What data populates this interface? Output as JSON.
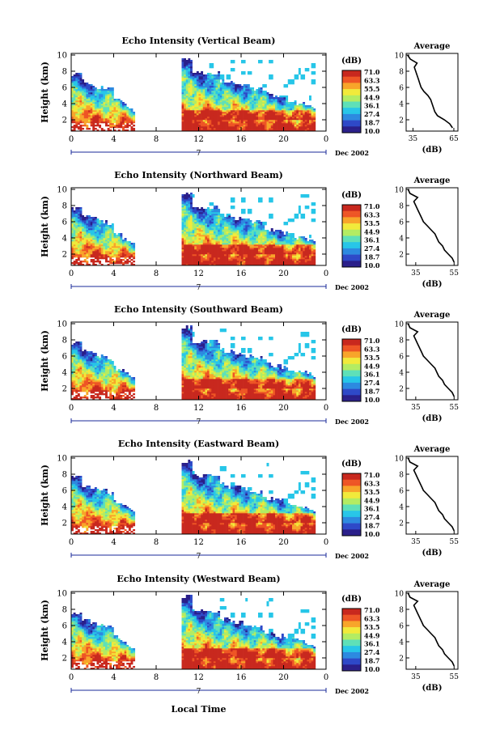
{
  "chart_data": [
    {
      "type": "heatmap",
      "title": "Echo Intensity (Vertical Beam)",
      "ylabel": "Height (km)",
      "x_ticks": [
        "0",
        "4",
        "8",
        "12",
        "16",
        "20",
        "0"
      ],
      "y_ticks": [
        "2",
        "4",
        "6",
        "8",
        "10"
      ],
      "xlim": [
        0,
        24
      ],
      "ylim": [
        0.6,
        10.2
      ],
      "date_day": "7",
      "date_label": "Dec 2002",
      "colorbar_unit": "(dB)",
      "colorbar_ticks": [
        "71.0",
        "63.3",
        "55.5",
        "44.9",
        "36.1",
        "27.4",
        "18.7",
        "10.0"
      ],
      "profile": {
        "title": "Average",
        "xlabel": "(dB)",
        "x_ticks": [
          "35",
          "65"
        ],
        "xlim": [
          30,
          68
        ],
        "y_ticks": [
          "2",
          "4",
          "6",
          "8",
          "10"
        ],
        "heights": [
          1,
          1.5,
          2,
          2.5,
          3,
          3.5,
          4,
          4.5,
          5,
          5.5,
          6,
          6.5,
          7,
          7.5,
          8,
          8.5,
          9,
          9.5,
          10
        ],
        "values": [
          64,
          62,
          58,
          53,
          51,
          50,
          49,
          48,
          46,
          43,
          41,
          40,
          39,
          38,
          37,
          36,
          38,
          33,
          31
        ]
      }
    },
    {
      "type": "heatmap",
      "title": "Echo Intensity (Northward Beam)",
      "ylabel": "Height (km)",
      "x_ticks": [
        "0",
        "4",
        "8",
        "12",
        "16",
        "20",
        "0"
      ],
      "y_ticks": [
        "2",
        "4",
        "6",
        "8",
        "10"
      ],
      "xlim": [
        0,
        24
      ],
      "ylim": [
        0.6,
        10.2
      ],
      "date_day": "7",
      "date_label": "Dec 2002",
      "colorbar_unit": "(dB)",
      "colorbar_ticks": [
        "71.0",
        "63.3",
        "53.5",
        "44.9",
        "36.1",
        "27.4",
        "18.7",
        "10.0"
      ],
      "profile": {
        "title": "Average",
        "xlabel": "(dB)",
        "x_ticks": [
          "35",
          "55"
        ],
        "xlim": [
          30,
          57
        ],
        "y_ticks": [
          "2",
          "4",
          "6",
          "8",
          "10"
        ],
        "heights": [
          1,
          1.5,
          2,
          2.5,
          3,
          3.5,
          4,
          4.5,
          5,
          5.5,
          6,
          6.5,
          7,
          7.5,
          8,
          8.5,
          9,
          9.5,
          10
        ],
        "values": [
          55,
          54,
          52,
          50,
          49,
          47,
          46,
          45,
          43,
          41,
          39,
          38,
          37,
          36,
          35,
          34,
          36,
          32,
          31
        ]
      }
    },
    {
      "type": "heatmap",
      "title": "Echo Intensity (Southward Beam)",
      "ylabel": "Height (km)",
      "x_ticks": [
        "0",
        "4",
        "8",
        "12",
        "16",
        "20",
        "0"
      ],
      "y_ticks": [
        "2",
        "4",
        "6",
        "8",
        "10"
      ],
      "xlim": [
        0,
        24
      ],
      "ylim": [
        0.6,
        10.2
      ],
      "date_day": "7",
      "date_label": "Dec 2002",
      "colorbar_unit": "(dB)",
      "colorbar_ticks": [
        "71.0",
        "63.3",
        "53.5",
        "44.9",
        "36.1",
        "27.4",
        "18.7",
        "10.0"
      ],
      "profile": {
        "title": "Average",
        "xlabel": "(dB)",
        "x_ticks": [
          "35",
          "55"
        ],
        "xlim": [
          30,
          57
        ],
        "y_ticks": [
          "2",
          "4",
          "6",
          "8",
          "10"
        ],
        "heights": [
          1,
          1.5,
          2,
          2.5,
          3,
          3.5,
          4,
          4.5,
          5,
          5.5,
          6,
          6.5,
          7,
          7.5,
          8,
          8.5,
          9,
          9.5,
          10
        ],
        "values": [
          55,
          54,
          52,
          50,
          49,
          47,
          46,
          45,
          43,
          41,
          39,
          38,
          37,
          36,
          35,
          34,
          36,
          32,
          31
        ]
      }
    },
    {
      "type": "heatmap",
      "title": "Echo Intensity (Eastward Beam)",
      "ylabel": "Height (km)",
      "x_ticks": [
        "0",
        "4",
        "8",
        "12",
        "16",
        "20",
        "0"
      ],
      "y_ticks": [
        "2",
        "4",
        "6",
        "8",
        "10"
      ],
      "xlim": [
        0,
        24
      ],
      "ylim": [
        0.6,
        10.2
      ],
      "date_day": "7",
      "date_label": "Dec 2002",
      "colorbar_unit": "(dB)",
      "colorbar_ticks": [
        "71.0",
        "63.3",
        "53.5",
        "44.9",
        "36.1",
        "27.4",
        "18.7",
        "10.0"
      ],
      "profile": {
        "title": "Average",
        "xlabel": "(dB)",
        "x_ticks": [
          "35",
          "55"
        ],
        "xlim": [
          30,
          57
        ],
        "y_ticks": [
          "2",
          "4",
          "6",
          "8",
          "10"
        ],
        "heights": [
          1,
          1.5,
          2,
          2.5,
          3,
          3.5,
          4,
          4.5,
          5,
          5.5,
          6,
          6.5,
          7,
          7.5,
          8,
          8.5,
          9,
          9.5,
          10
        ],
        "values": [
          55,
          54,
          52,
          50,
          49,
          47,
          46,
          45,
          43,
          41,
          39,
          38,
          37,
          36,
          35,
          34,
          36,
          32,
          31
        ]
      }
    },
    {
      "type": "heatmap",
      "title": "Echo Intensity (Westward Beam)",
      "ylabel": "Height (km)",
      "x_ticks": [
        "0",
        "4",
        "8",
        "12",
        "16",
        "20",
        "0"
      ],
      "y_ticks": [
        "2",
        "4",
        "6",
        "8",
        "10"
      ],
      "xlim": [
        0,
        24
      ],
      "ylim": [
        0.6,
        10.2
      ],
      "date_day": "7",
      "date_label": "Dec 2002",
      "colorbar_unit": "(dB)",
      "colorbar_ticks": [
        "71.0",
        "63.3",
        "53.5",
        "44.9",
        "36.1",
        "27.4",
        "18.7",
        "10.0"
      ],
      "profile": {
        "title": "Average",
        "xlabel": "(dB)",
        "x_ticks": [
          "35",
          "55"
        ],
        "xlim": [
          30,
          57
        ],
        "y_ticks": [
          "2",
          "4",
          "6",
          "8",
          "10"
        ],
        "heights": [
          1,
          1.5,
          2,
          2.5,
          3,
          3.5,
          4,
          4.5,
          5,
          5.5,
          6,
          6.5,
          7,
          7.5,
          8,
          8.5,
          9,
          9.5,
          10
        ],
        "values": [
          55,
          54,
          52,
          50,
          49,
          47,
          46,
          45,
          43,
          41,
          39,
          38,
          37,
          36,
          35,
          34,
          36,
          32,
          31
        ]
      }
    }
  ],
  "xlabel": "Local Time",
  "colormap": [
    "#2a1f8a",
    "#2e49c8",
    "#2d8ae0",
    "#27c6e8",
    "#5fe0b8",
    "#b3ec62",
    "#f1ea3b",
    "#f8a52a",
    "#ee5525",
    "#c8281e"
  ]
}
